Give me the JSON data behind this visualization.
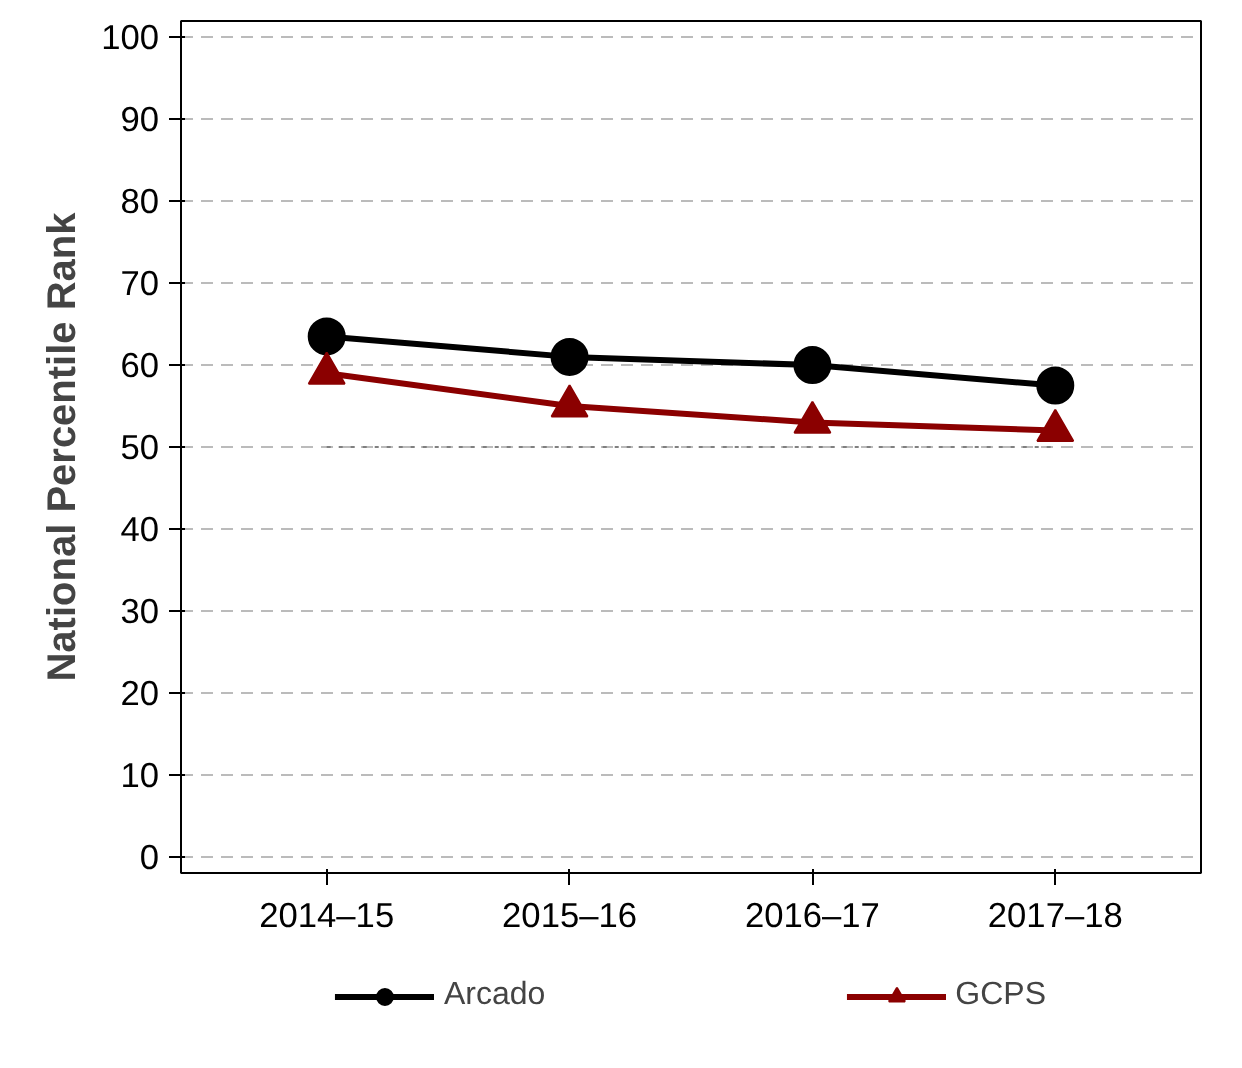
{
  "chart_data": {
    "type": "line",
    "ylabel": "National Percentile Rank",
    "categories": [
      "2014–15",
      "2015–16",
      "2016–17",
      "2017–18"
    ],
    "series": [
      {
        "name": "Arcado",
        "color": "#000000",
        "values": [
          63.5,
          61,
          60,
          57.5
        ],
        "marker": "circle"
      },
      {
        "name": "GCPS",
        "color": "#8b0000",
        "values": [
          59,
          55,
          53,
          52
        ],
        "marker": "triangle"
      }
    ],
    "ylim": [
      -2,
      102
    ],
    "yticks": [
      0,
      10,
      20,
      30,
      40,
      50,
      60,
      70,
      80,
      90,
      100
    ],
    "grid": "y",
    "legend": "bottom",
    "ref_lines": [
      {
        "axis": "y",
        "value": 50,
        "color": "#808080",
        "line_style": "dotted"
      }
    ]
  }
}
